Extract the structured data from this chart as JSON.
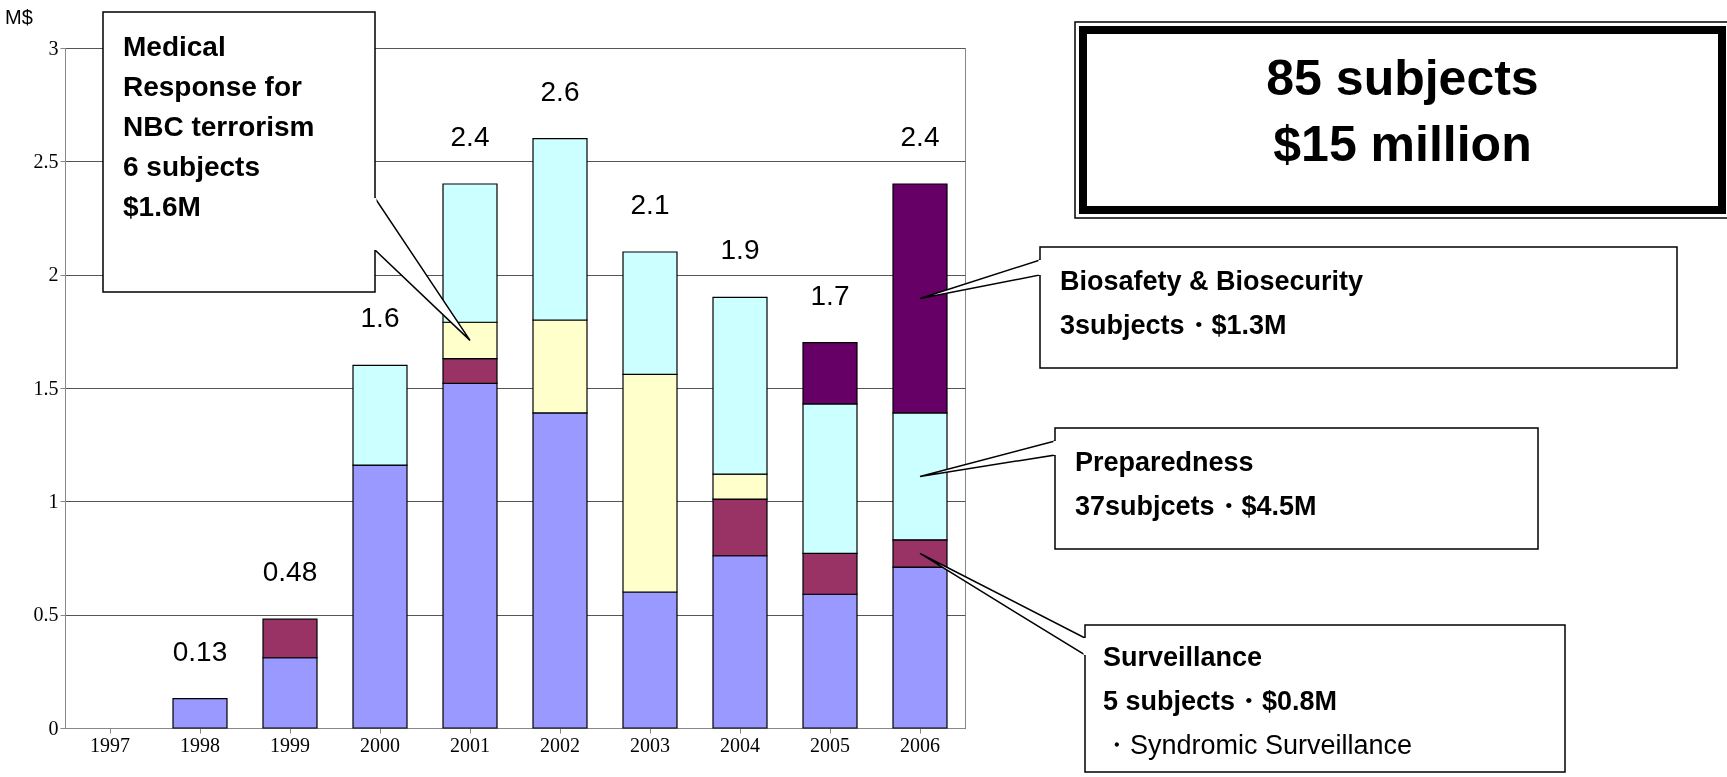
{
  "chart_data": {
    "type": "bar",
    "stacked": true,
    "ylabel": "M$",
    "categories": [
      "1997",
      "1998",
      "1999",
      "2000",
      "2001",
      "2002",
      "2003",
      "2004",
      "2005",
      "2006"
    ],
    "series": [
      {
        "color": "#9999ff",
        "values": [
          null,
          0.13,
          0.31,
          1.16,
          1.52,
          1.39,
          0.6,
          0.76,
          0.59,
          0.71
        ]
      },
      {
        "color": "#993366",
        "values": [
          null,
          null,
          0.17,
          null,
          0.11,
          null,
          null,
          0.25,
          0.18,
          0.12
        ]
      },
      {
        "color": "#ffffcc",
        "values": [
          null,
          null,
          null,
          null,
          0.16,
          0.41,
          0.96,
          0.11,
          null,
          null
        ]
      },
      {
        "color": "#ccffff",
        "values": [
          null,
          null,
          null,
          0.44,
          0.61,
          0.8,
          0.54,
          0.78,
          0.66,
          0.56
        ]
      },
      {
        "color": "#660066",
        "values": [
          null,
          null,
          null,
          null,
          null,
          null,
          null,
          null,
          0.27,
          1.01
        ]
      }
    ],
    "totals": [
      null,
      "0.13",
      "0.48",
      "1.6",
      "2.4",
      "2.6",
      "2.1",
      "1.9",
      "1.7",
      "2.4"
    ],
    "ylim": [
      0,
      3
    ],
    "yticks": [
      0,
      0.5,
      1,
      1.5,
      2,
      2.5,
      3
    ],
    "grid": "y",
    "annotations": [
      "Medical\nResponse for\nNBC terrorism\n6 subjects\n$1.6M",
      "85 subjects\n$15 million",
      "Biosafety & Biosecurity\n3subjects・$1.3M",
      "Preparedness\n37subjcets・$4.5M",
      "Surveillance\n5 subjects・$0.8M\n・Syndromic Surveillance"
    ]
  }
}
